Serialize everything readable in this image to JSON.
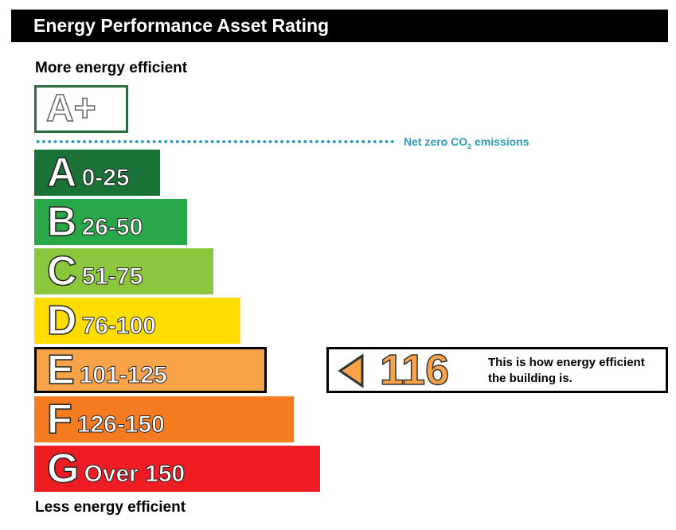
{
  "header": {
    "title": "Energy Performance Asset Rating"
  },
  "labels": {
    "more_efficient": "More energy efficient",
    "less_efficient": "Less energy efficient"
  },
  "aplus": {
    "label": "A+",
    "border_color": "#2d6b3d"
  },
  "net_zero": {
    "text": "Net zero CO",
    "subscript": "2",
    "text_after": " emissions",
    "color": "#2d9db8"
  },
  "current_rating": {
    "value": "116",
    "band": "E",
    "note": "This is how energy efficient the building is.",
    "color": "#f8a34a"
  },
  "chart_data": {
    "type": "bar",
    "title": "Energy Performance Asset Rating",
    "bands": [
      {
        "letter": "A",
        "range": "0-25",
        "color": "#1a7238"
      },
      {
        "letter": "B",
        "range": "26-50",
        "color": "#29a84a"
      },
      {
        "letter": "C",
        "range": "51-75",
        "color": "#8cc63f"
      },
      {
        "letter": "D",
        "range": "76-100",
        "color": "#ffdd00"
      },
      {
        "letter": "E",
        "range": "101-125",
        "color": "#f8a34a"
      },
      {
        "letter": "F",
        "range": "126-150",
        "color": "#f47b20"
      },
      {
        "letter": "G",
        "range": "Over 150",
        "color": "#ee1c23"
      }
    ],
    "current_value": 116,
    "current_band": "E"
  }
}
